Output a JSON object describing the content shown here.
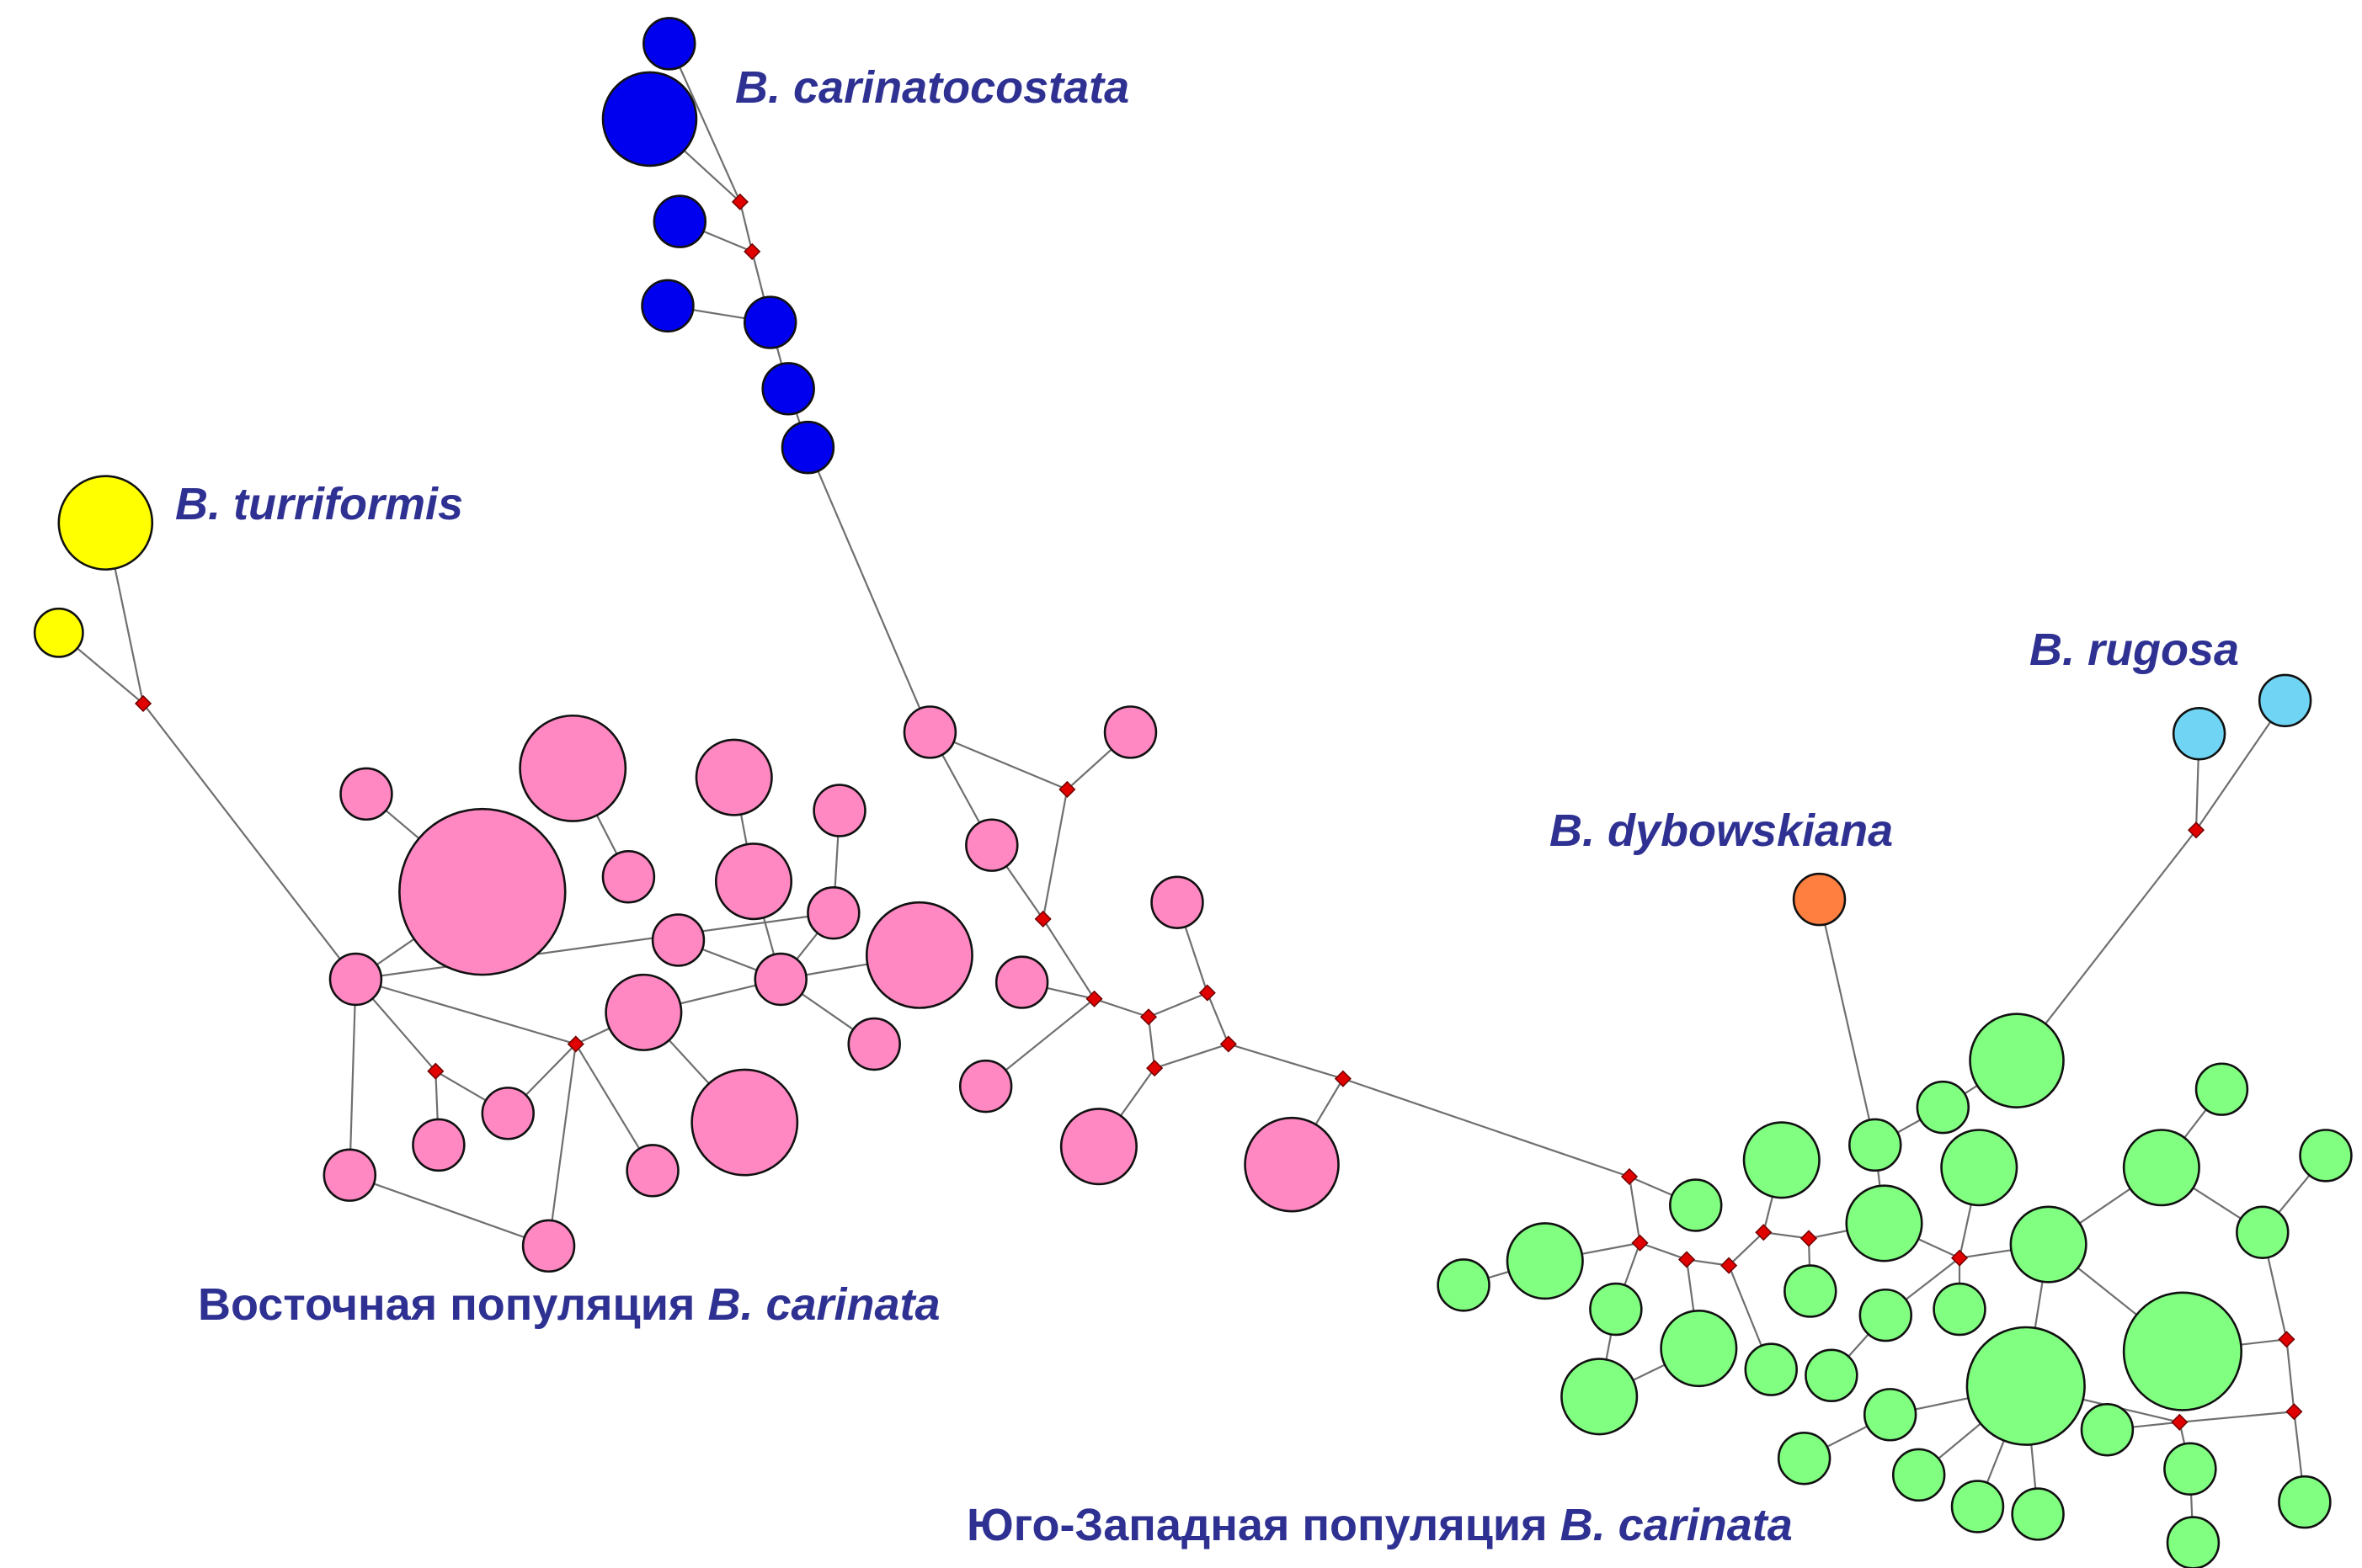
{
  "colors": {
    "carinatocostata": "#0000ee",
    "turriformis": "#ffff00",
    "eastern": "#ff88c2",
    "southwestern": "#80ff80",
    "rugosa": "#70d4f4",
    "dybowskiana": "#ff7f40",
    "median": "#e00000",
    "label": "#2e3192"
  },
  "labels": {
    "carinatocostata": "B. carinatocostata",
    "turriformis": "B. turriformis",
    "rugosa": "B. rugosa",
    "dybowskiana": "B. dybowskiana",
    "eastern_prefix": "Восточная популяция ",
    "eastern_species": "B. carinata",
    "southwest_prefix": "Юго-Западная популяция ",
    "southwest_species": "B. carinata"
  }
}
